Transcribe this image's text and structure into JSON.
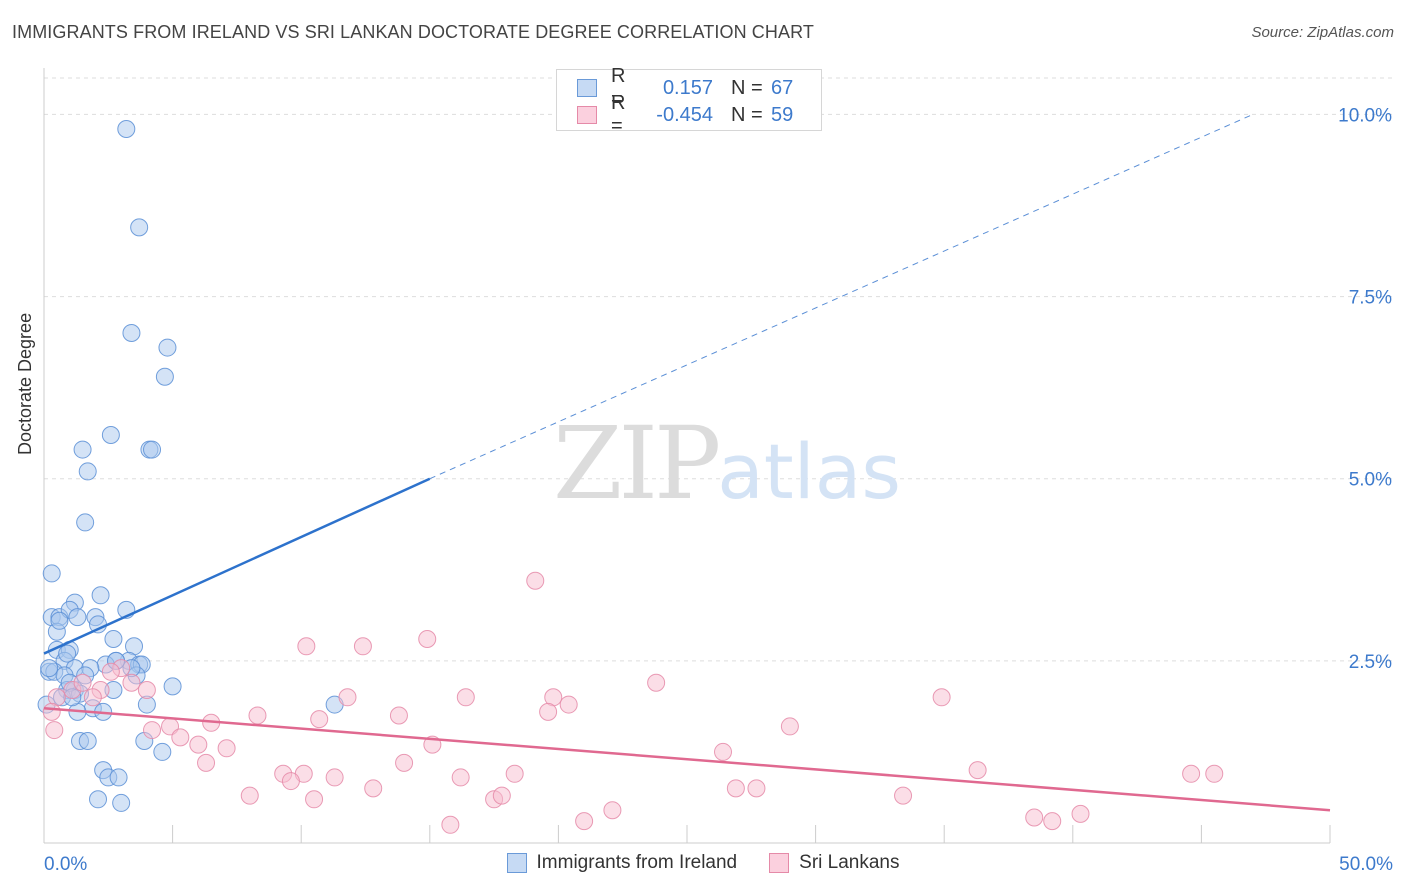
{
  "title": "IMMIGRANTS FROM IRELAND VS SRI LANKAN DOCTORATE DEGREE CORRELATION CHART",
  "source": "Source: ZipAtlas.com",
  "watermark": {
    "zip": "ZIP",
    "atlas": "atlas"
  },
  "legend": {
    "rows": [
      {
        "r_label": "R =",
        "r_value": "0.157",
        "n_label": "N =",
        "n_value": "67"
      },
      {
        "r_label": "R =",
        "r_value": "-0.454",
        "n_label": "N =",
        "n_value": "59"
      }
    ]
  },
  "colors": {
    "blue_fill": "#a9c8ee",
    "blue_stroke": "#5b8fd6",
    "blue_line": "#2d72cc",
    "pink_fill": "#f7bdd0",
    "pink_stroke": "#e58aa8",
    "pink_line": "#e06990",
    "grid": "#dddddd",
    "tick_label": "#3d7acc"
  },
  "chart_data": {
    "type": "scatter",
    "title": "IMMIGRANTS FROM IRELAND VS SRI LANKAN DOCTORATE DEGREE CORRELATION CHART",
    "ylabel": "Doctorate Degree",
    "xlabel": "",
    "xlim": [
      0,
      50
    ],
    "ylim": [
      0,
      10.5
    ],
    "x_tick_labels": [
      "0.0%",
      "50.0%"
    ],
    "y_ticks": [
      2.5,
      5.0,
      7.5,
      10.0
    ],
    "y_tick_labels": [
      "2.5%",
      "5.0%",
      "7.5%",
      "10.0%"
    ],
    "grid": true,
    "series": [
      {
        "name": "Immigrants from Ireland",
        "color": "#a9c8ee",
        "trend": {
          "x": [
            0,
            15
          ],
          "y": [
            2.6,
            5.0
          ],
          "dashed_to": [
            47,
            10.0
          ]
        },
        "points": [
          [
            3.2,
            9.8
          ],
          [
            3.7,
            8.45
          ],
          [
            3.4,
            7.0
          ],
          [
            4.8,
            6.8
          ],
          [
            4.7,
            6.4
          ],
          [
            2.6,
            5.6
          ],
          [
            1.5,
            5.4
          ],
          [
            4.1,
            5.4
          ],
          [
            4.2,
            5.4
          ],
          [
            1.7,
            5.1
          ],
          [
            1.6,
            4.4
          ],
          [
            0.3,
            3.7
          ],
          [
            2.2,
            3.4
          ],
          [
            1.2,
            3.3
          ],
          [
            3.2,
            3.2
          ],
          [
            0.3,
            3.1
          ],
          [
            0.6,
            3.1
          ],
          [
            1.0,
            3.2
          ],
          [
            1.3,
            3.1
          ],
          [
            2.0,
            3.1
          ],
          [
            2.1,
            3.0
          ],
          [
            0.5,
            2.9
          ],
          [
            2.7,
            2.8
          ],
          [
            3.5,
            2.7
          ],
          [
            0.5,
            2.65
          ],
          [
            1.0,
            2.65
          ],
          [
            0.8,
            2.5
          ],
          [
            3.3,
            2.5
          ],
          [
            2.8,
            2.5
          ],
          [
            3.7,
            2.45
          ],
          [
            3.8,
            2.45
          ],
          [
            2.4,
            2.45
          ],
          [
            1.2,
            2.4
          ],
          [
            1.8,
            2.4
          ],
          [
            0.2,
            2.35
          ],
          [
            0.4,
            2.35
          ],
          [
            0.8,
            2.3
          ],
          [
            1.6,
            2.3
          ],
          [
            3.6,
            2.3
          ],
          [
            5.0,
            2.15
          ],
          [
            0.9,
            2.1
          ],
          [
            1.2,
            2.1
          ],
          [
            2.7,
            2.1
          ],
          [
            1.4,
            2.05
          ],
          [
            0.7,
            2.0
          ],
          [
            4.0,
            1.9
          ],
          [
            11.3,
            1.9
          ],
          [
            0.1,
            1.9
          ],
          [
            1.9,
            1.85
          ],
          [
            1.3,
            1.8
          ],
          [
            2.3,
            1.8
          ],
          [
            1.4,
            1.4
          ],
          [
            1.7,
            1.4
          ],
          [
            3.9,
            1.4
          ],
          [
            4.6,
            1.25
          ],
          [
            2.3,
            1.0
          ],
          [
            2.5,
            0.9
          ],
          [
            2.9,
            0.9
          ],
          [
            2.1,
            0.6
          ],
          [
            3.0,
            0.55
          ],
          [
            0.2,
            2.4
          ],
          [
            1.0,
            2.2
          ],
          [
            0.6,
            3.05
          ],
          [
            0.9,
            2.6
          ],
          [
            1.1,
            2.0
          ],
          [
            2.8,
            2.5
          ],
          [
            3.4,
            2.4
          ]
        ]
      },
      {
        "name": "Sri Lankans",
        "color": "#f7bdd0",
        "trend": {
          "x": [
            0,
            50
          ],
          "y": [
            1.85,
            0.45
          ]
        },
        "points": [
          [
            19.1,
            3.6
          ],
          [
            10.2,
            2.7
          ],
          [
            14.9,
            2.8
          ],
          [
            12.4,
            2.7
          ],
          [
            23.8,
            2.2
          ],
          [
            34.9,
            2.0
          ],
          [
            11.8,
            2.0
          ],
          [
            19.8,
            2.0
          ],
          [
            16.4,
            2.0
          ],
          [
            20.4,
            1.9
          ],
          [
            19.6,
            1.8
          ],
          [
            8.3,
            1.75
          ],
          [
            10.7,
            1.7
          ],
          [
            13.8,
            1.75
          ],
          [
            29.0,
            1.6
          ],
          [
            6.5,
            1.65
          ],
          [
            4.9,
            1.6
          ],
          [
            4.2,
            1.55
          ],
          [
            5.3,
            1.45
          ],
          [
            15.1,
            1.35
          ],
          [
            6.0,
            1.35
          ],
          [
            7.1,
            1.3
          ],
          [
            26.4,
            1.25
          ],
          [
            6.3,
            1.1
          ],
          [
            14.0,
            1.1
          ],
          [
            9.3,
            0.95
          ],
          [
            10.1,
            0.95
          ],
          [
            11.3,
            0.9
          ],
          [
            18.3,
            0.95
          ],
          [
            16.2,
            0.9
          ],
          [
            36.3,
            1.0
          ],
          [
            44.6,
            0.95
          ],
          [
            45.5,
            0.95
          ],
          [
            9.6,
            0.85
          ],
          [
            12.8,
            0.75
          ],
          [
            8.0,
            0.65
          ],
          [
            10.5,
            0.6
          ],
          [
            17.5,
            0.6
          ],
          [
            17.8,
            0.65
          ],
          [
            26.9,
            0.75
          ],
          [
            27.7,
            0.75
          ],
          [
            33.4,
            0.65
          ],
          [
            22.1,
            0.45
          ],
          [
            38.5,
            0.35
          ],
          [
            39.2,
            0.3
          ],
          [
            40.3,
            0.4
          ],
          [
            21.0,
            0.3
          ],
          [
            15.8,
            0.25
          ],
          [
            1.1,
            2.1
          ],
          [
            1.5,
            2.2
          ],
          [
            2.2,
            2.1
          ],
          [
            0.5,
            2.0
          ],
          [
            0.3,
            1.8
          ],
          [
            3.0,
            2.4
          ],
          [
            2.6,
            2.35
          ],
          [
            3.4,
            2.2
          ],
          [
            0.4,
            1.55
          ],
          [
            1.9,
            2.0
          ],
          [
            4.0,
            2.1
          ]
        ]
      }
    ]
  }
}
